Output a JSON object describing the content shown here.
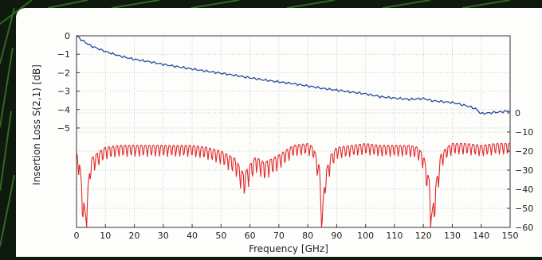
{
  "chart_data": {
    "type": "line",
    "xlabel": "Frequency  [GHz]",
    "ylabel": "Insertion Loss S(2,1)  [dB]",
    "x_ticks": [
      0,
      10,
      20,
      30,
      40,
      50,
      60,
      70,
      80,
      90,
      100,
      110,
      120,
      130,
      140,
      150
    ],
    "xlim": [
      0,
      150
    ],
    "grid": true,
    "left_axis": {
      "range": [
        -6.2,
        0
      ],
      "ticks": [
        0,
        -1,
        -2,
        -3,
        -4,
        -5
      ]
    },
    "right_axis": {
      "range": [
        -60,
        0
      ],
      "ticks": [
        0,
        -10,
        -20,
        -30,
        -40,
        -50,
        -60
      ]
    },
    "colors": {
      "insertion_loss": "#2a4aa0",
      "return_loss": "#e02a2a",
      "grid": "#c9c9c9",
      "background": "#0d1a0d"
    },
    "series": [
      {
        "axis": "left",
        "x": [
          0,
          2,
          5,
          10,
          15,
          20,
          25,
          30,
          35,
          40,
          45,
          50,
          55,
          60,
          65,
          70,
          75,
          80,
          85,
          90,
          95,
          100,
          105,
          110,
          115,
          120,
          123,
          125,
          130,
          135,
          138,
          140,
          145,
          150
        ],
        "values": [
          0,
          -0.25,
          -0.55,
          -0.85,
          -1.1,
          -1.28,
          -1.4,
          -1.55,
          -1.68,
          -1.8,
          -1.92,
          -2.03,
          -2.15,
          -2.28,
          -2.4,
          -2.5,
          -2.6,
          -2.72,
          -2.85,
          -2.95,
          -3.05,
          -3.15,
          -3.3,
          -3.38,
          -3.45,
          -3.4,
          -3.52,
          -3.55,
          -3.62,
          -3.8,
          -3.95,
          -4.22,
          -4.15,
          -4.08
        ]
      },
      {
        "axis": "right",
        "x": [
          0,
          1,
          2,
          3,
          5,
          8,
          10,
          15,
          20,
          25,
          30,
          35,
          40,
          45,
          50,
          55,
          57,
          58,
          60,
          62,
          65,
          70,
          75,
          80,
          82,
          84,
          85,
          86,
          88,
          90,
          95,
          100,
          105,
          110,
          115,
          118,
          120,
          122,
          123,
          124,
          126,
          128,
          130,
          135,
          140,
          145,
          150
        ],
        "values": [
          -21,
          -25,
          -40,
          -52,
          -24,
          -20,
          -18,
          -17,
          -17,
          -17,
          -17,
          -17,
          -17,
          -18,
          -20,
          -24,
          -30,
          -32,
          -27,
          -23,
          -26,
          -22,
          -17,
          -16,
          -18,
          -28,
          -52,
          -32,
          -22,
          -18,
          -17,
          -16,
          -17,
          -17,
          -17,
          -18,
          -22,
          -35,
          -52,
          -40,
          -22,
          -18,
          -16,
          -16,
          -17,
          -16,
          -16
        ]
      }
    ]
  }
}
